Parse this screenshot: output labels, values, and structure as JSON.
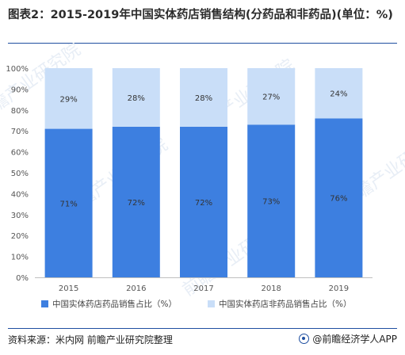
{
  "title": "图表2：2015-2019年中国实体药店销售结构(分药品和非药品)(单位：%)",
  "source": "资料来源：米内网 前瞻产业研究院整理",
  "brand": "@前瞻经济学人APP",
  "watermark": "前瞻产业研究院",
  "colors": {
    "drug": "#3d7fe0",
    "nondrug": "#c9def8",
    "rule": "#1f4fa0"
  },
  "chart_data": {
    "type": "bar",
    "stacked": true,
    "percent": true,
    "categories": [
      "2015",
      "2016",
      "2017",
      "2018",
      "2019"
    ],
    "series": [
      {
        "name": "中国实体药店药品销售占比（%）",
        "values": [
          71,
          72,
          72,
          73,
          76
        ],
        "labels": [
          "71%",
          "72%",
          "72%",
          "73%",
          "76%"
        ]
      },
      {
        "name": "中国实体药店非药品销售占比（%）",
        "values": [
          29,
          28,
          28,
          27,
          24
        ],
        "labels": [
          "29%",
          "28%",
          "28%",
          "27%",
          "24%"
        ]
      }
    ],
    "yticks": [
      "0%",
      "10%",
      "20%",
      "30%",
      "40%",
      "50%",
      "60%",
      "70%",
      "80%",
      "90%",
      "100%"
    ],
    "ylim": [
      0,
      100
    ],
    "grid": false,
    "legend": "bottom"
  }
}
